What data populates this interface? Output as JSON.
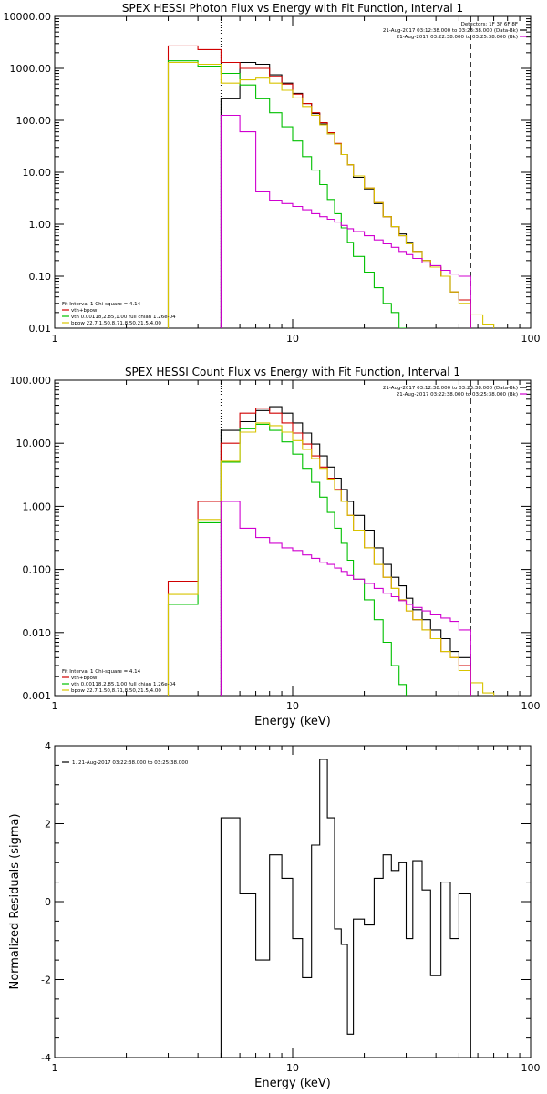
{
  "colors": {
    "data": "#000000",
    "total": "#d00000",
    "vth": "#00c000",
    "bpow": "#d8c400",
    "bk": "#d000d0",
    "axes": "#000000"
  },
  "chart_data": [
    {
      "type": "line",
      "id": "photon",
      "title": "SPEX HESSI Photon Flux vs Energy with Fit Function, Interval 1",
      "xlabel": "",
      "ylabel": "",
      "xlim": [
        1,
        100
      ],
      "ylim": [
        0.01,
        10000
      ],
      "xscale": "log",
      "yscale": "log",
      "xticks": [
        1,
        10,
        100
      ],
      "xticklabels": [
        "1",
        "10",
        "100"
      ],
      "yticks": [
        0.01,
        0.1,
        1,
        10,
        100,
        1000,
        10000
      ],
      "yticklabels": [
        "0.01",
        "0.10",
        "1.00",
        "10.00",
        "100.00",
        "1000.00",
        "10000.00"
      ],
      "vlines": [
        {
          "x": 5,
          "style": "dotted"
        },
        {
          "x": 56,
          "style": "dashed"
        }
      ],
      "legend_top_right": [
        "Detectors: 1F 3F 6F 8F",
        "21-Aug-2017 03:12:38.000 to 03:23:38.000 (Data-Bk)",
        "21-Aug-2017 03:22:38.000 to 03:25:38.000 (Bk)"
      ],
      "legend_bottom_left": [
        "Fit Interval 1   Chi-square = 4.14",
        "vth+bpow",
        "vth 0.00118,2.85,1.00  full chian 1.26e-04",
        "bpow 22.7,1.50,8.71,8.50,21.5,4.00"
      ],
      "series": [
        {
          "name": "Data-Bk",
          "color_key": "data",
          "edges": [
            5,
            6,
            7,
            8,
            9,
            10,
            11,
            12,
            13,
            14,
            15,
            16,
            17,
            18,
            20,
            22,
            24,
            26,
            28,
            30,
            32,
            35,
            38,
            42,
            46,
            50,
            56
          ],
          "values": [
            260,
            1300,
            1200,
            750,
            520,
            330,
            210,
            135,
            85,
            55,
            35,
            22,
            14,
            8,
            4.8,
            2.5,
            1.4,
            0.9,
            0.65,
            0.45,
            0.3,
            0.2,
            0.15,
            0.1,
            0.05,
            0.035
          ]
        },
        {
          "name": "vth+bpow",
          "color_key": "total",
          "edges": [
            3,
            4,
            5,
            6,
            7,
            8,
            9,
            10,
            11,
            12,
            13,
            14,
            15,
            16,
            17,
            18,
            20,
            22,
            24,
            26,
            28,
            30,
            32,
            35,
            38,
            42,
            46,
            50,
            56
          ],
          "values": [
            2700,
            2300,
            1300,
            1000,
            1000,
            700,
            500,
            320,
            210,
            140,
            90,
            58,
            36,
            22,
            14,
            8.5,
            5,
            2.6,
            1.4,
            0.9,
            0.6,
            0.42,
            0.3,
            0.2,
            0.15,
            0.1,
            0.05,
            0.035
          ]
        },
        {
          "name": "vth",
          "color_key": "vth",
          "edges": [
            3,
            4,
            5,
            6,
            7,
            8,
            9,
            10,
            11,
            12,
            13,
            14,
            15,
            16,
            17,
            18,
            20,
            22,
            24,
            26,
            28,
            30
          ],
          "values": [
            1400,
            1100,
            800,
            480,
            260,
            140,
            75,
            40,
            20,
            11,
            5.8,
            3,
            1.6,
            0.85,
            0.45,
            0.24,
            0.12,
            0.06,
            0.03,
            0.02,
            0.01
          ]
        },
        {
          "name": "bpow",
          "color_key": "bpow",
          "edges": [
            3,
            4,
            5,
            6,
            7,
            8,
            9,
            10,
            11,
            12,
            13,
            14,
            15,
            16,
            17,
            18,
            20,
            22,
            24,
            26,
            28,
            30,
            32,
            35,
            38,
            42,
            46,
            50,
            56,
            63,
            70
          ],
          "values": [
            1300,
            1200,
            520,
            600,
            650,
            520,
            380,
            270,
            185,
            125,
            82,
            55,
            35,
            22,
            14,
            8.5,
            5,
            2.6,
            1.4,
            0.9,
            0.6,
            0.42,
            0.3,
            0.2,
            0.15,
            0.1,
            0.05,
            0.03,
            0.018,
            0.012
          ]
        },
        {
          "name": "Bk",
          "color_key": "bk",
          "edges": [
            5,
            6,
            7,
            8,
            9,
            10,
            11,
            12,
            13,
            14,
            15,
            16,
            17,
            18,
            20,
            22,
            24,
            26,
            28,
            30,
            32,
            35,
            38,
            42,
            46,
            50,
            56
          ],
          "values": [
            125,
            60,
            4.2,
            2.9,
            2.5,
            2.2,
            1.9,
            1.6,
            1.4,
            1.25,
            1.1,
            0.95,
            0.82,
            0.72,
            0.6,
            0.5,
            0.42,
            0.36,
            0.3,
            0.26,
            0.22,
            0.18,
            0.16,
            0.13,
            0.11,
            0.1
          ]
        }
      ]
    },
    {
      "type": "line",
      "id": "count",
      "title": "SPEX HESSI Count Flux vs Energy with Fit Function, Interval 1",
      "xlabel": "Energy (keV)",
      "ylabel": "",
      "xlim": [
        1,
        100
      ],
      "ylim": [
        0.001,
        100
      ],
      "xscale": "log",
      "yscale": "log",
      "xticks": [
        1,
        10,
        100
      ],
      "xticklabels": [
        "1",
        "10",
        "100"
      ],
      "yticks": [
        0.001,
        0.01,
        0.1,
        1,
        10,
        100
      ],
      "yticklabels": [
        "0.001",
        "0.010",
        "0.100",
        "1.000",
        "10.000",
        "100.000"
      ],
      "vlines": [
        {
          "x": 5,
          "style": "dotted"
        },
        {
          "x": 56,
          "style": "dashed"
        }
      ],
      "legend_top_right": [
        "21-Aug-2017 03:12:38.000 to 03:23:38.000 (Data-Bk)",
        "21-Aug-2017 03:22:38.000 to 03:25:38.000 (Bk)"
      ],
      "legend_bottom_left": [
        "Fit Interval 1   Chi-square = 4.14",
        "vth+bpow",
        "vth 0.00118,2.85,1.00  full chian 1.26e-04",
        "bpow 22.7,1.50,8.71,8.50,21.5,4.00"
      ],
      "series": [
        {
          "name": "Data-Bk",
          "color_key": "data",
          "edges": [
            5,
            6,
            7,
            8,
            9,
            10,
            11,
            12,
            13,
            14,
            15,
            16,
            17,
            18,
            20,
            22,
            24,
            26,
            28,
            30,
            32,
            35,
            38,
            42,
            46,
            50,
            56
          ],
          "values": [
            16,
            22,
            33,
            38,
            30,
            21,
            14.5,
            9.7,
            6.3,
            4.2,
            2.8,
            1.85,
            1.2,
            0.72,
            0.42,
            0.22,
            0.12,
            0.075,
            0.055,
            0.035,
            0.023,
            0.016,
            0.011,
            0.008,
            0.005,
            0.004
          ]
        },
        {
          "name": "vth+bpow",
          "color_key": "total",
          "edges": [
            3,
            4,
            5,
            6,
            7,
            8,
            9,
            10,
            11,
            12,
            13,
            14,
            15,
            16,
            17,
            18,
            20,
            22,
            24,
            26,
            28,
            30,
            32,
            35,
            38,
            42,
            46,
            50,
            56
          ],
          "values": [
            0.065,
            1.2,
            10,
            30,
            36,
            30,
            21,
            14.5,
            9.7,
            6.3,
            4.2,
            2.8,
            1.85,
            1.2,
            0.72,
            0.42,
            0.22,
            0.12,
            0.075,
            0.05,
            0.033,
            0.022,
            0.016,
            0.011,
            0.008,
            0.005,
            0.004,
            0.003
          ]
        },
        {
          "name": "vth",
          "color_key": "vth",
          "edges": [
            3,
            4,
            5,
            6,
            7,
            8,
            9,
            10,
            11,
            12,
            13,
            14,
            15,
            16,
            17,
            18,
            20,
            22,
            24,
            26,
            28,
            30
          ],
          "values": [
            0.028,
            0.55,
            5,
            17,
            20,
            16,
            10.5,
            6.7,
            4,
            2.4,
            1.4,
            0.8,
            0.45,
            0.26,
            0.14,
            0.07,
            0.033,
            0.016,
            0.007,
            0.003,
            0.0015
          ]
        },
        {
          "name": "bpow",
          "color_key": "bpow",
          "edges": [
            3,
            4,
            5,
            6,
            7,
            8,
            9,
            10,
            11,
            12,
            13,
            14,
            15,
            16,
            17,
            18,
            20,
            22,
            24,
            26,
            28,
            30,
            32,
            35,
            38,
            42,
            46,
            50,
            56,
            63,
            70
          ],
          "values": [
            0.04,
            0.62,
            5.2,
            15,
            21,
            19,
            15,
            11,
            8,
            5.7,
            4,
            2.7,
            1.8,
            1.2,
            0.72,
            0.42,
            0.22,
            0.12,
            0.075,
            0.05,
            0.033,
            0.022,
            0.016,
            0.011,
            0.008,
            0.005,
            0.004,
            0.0025,
            0.0016,
            0.0011
          ]
        },
        {
          "name": "Bk",
          "color_key": "bk",
          "edges": [
            5,
            6,
            7,
            8,
            9,
            10,
            11,
            12,
            13,
            14,
            15,
            16,
            17,
            18,
            20,
            22,
            24,
            26,
            28,
            30,
            32,
            35,
            38,
            42,
            46,
            50,
            56
          ],
          "values": [
            1.2,
            0.45,
            0.32,
            0.26,
            0.22,
            0.2,
            0.17,
            0.15,
            0.13,
            0.12,
            0.105,
            0.093,
            0.08,
            0.07,
            0.06,
            0.05,
            0.042,
            0.037,
            0.032,
            0.028,
            0.025,
            0.022,
            0.019,
            0.017,
            0.015,
            0.011
          ]
        }
      ]
    },
    {
      "type": "line",
      "id": "resid",
      "title": "",
      "xlabel": "Energy (keV)",
      "ylabel": "Normalized Residuals (sigma)",
      "xlim": [
        1,
        100
      ],
      "ylim": [
        -4,
        4
      ],
      "xscale": "log",
      "yscale": "linear",
      "xticks": [
        1,
        10,
        100
      ],
      "xticklabels": [
        "1",
        "10",
        "100"
      ],
      "yticks": [
        -4,
        -2,
        0,
        2,
        4
      ],
      "yticklabels": [
        "-4",
        "-2",
        "0",
        "2",
        "4"
      ],
      "legend_top_left": [
        "1. 21-Aug-2017 03:22:38.000 to 03:25:38.000"
      ],
      "series": [
        {
          "name": "",
          "color_key": "data",
          "edges": [
            5,
            6,
            7,
            8,
            9,
            10,
            11,
            12,
            13,
            14,
            15,
            16,
            17,
            18,
            20,
            22,
            24,
            26,
            28,
            30,
            32,
            35,
            38,
            42,
            46,
            50,
            56
          ],
          "values": [
            2.15,
            0.2,
            -1.5,
            1.2,
            0.6,
            -0.95,
            -1.95,
            1.45,
            3.65,
            2.15,
            -0.7,
            -1.1,
            -3.4,
            -0.45,
            -0.6,
            0.6,
            1.2,
            0.8,
            1.0,
            -0.95,
            1.05,
            0.3,
            -1.9,
            0.5,
            -0.95,
            0.2
          ]
        }
      ]
    }
  ]
}
